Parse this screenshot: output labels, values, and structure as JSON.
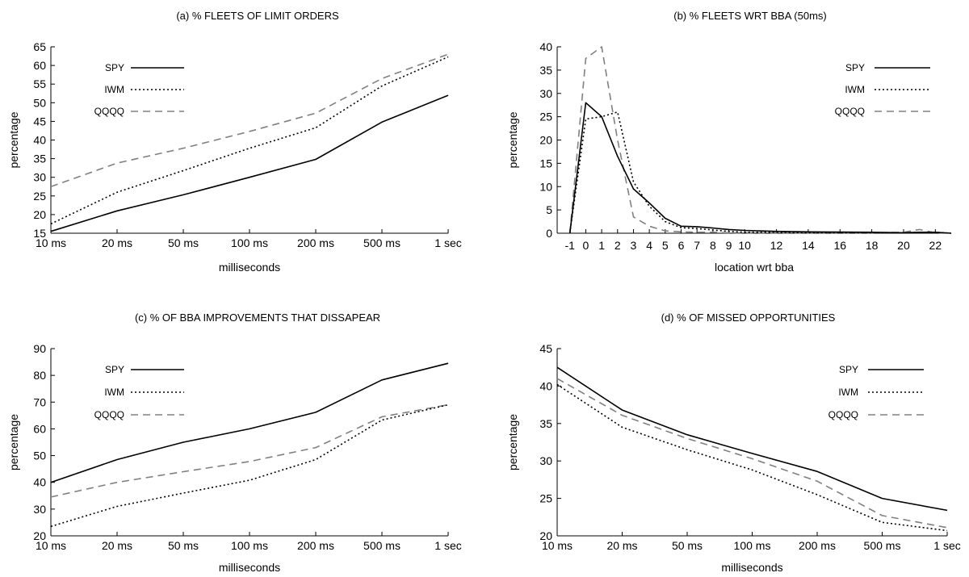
{
  "chart_data": [
    {
      "id": "a",
      "type": "line",
      "title": "(a) % FLEETS OF LIMIT ORDERS",
      "xlabel": "milliseconds",
      "ylabel": "percentage",
      "categories": [
        "10 ms",
        "20 ms",
        "50 ms",
        "100 ms",
        "200 ms",
        "500 ms",
        "1 sec"
      ],
      "ylim": [
        15,
        65
      ],
      "yticks": [
        15,
        20,
        25,
        30,
        35,
        40,
        45,
        50,
        55,
        60,
        65
      ],
      "grid": false,
      "legend": "top-left",
      "series": [
        {
          "name": "SPY",
          "style": "solid",
          "values": [
            15.5,
            21,
            25.3,
            30,
            34.8,
            44.8,
            52
          ]
        },
        {
          "name": "IWM",
          "style": "dotted",
          "values": [
            17.5,
            26,
            31.8,
            37.8,
            43.3,
            54.5,
            62.3
          ]
        },
        {
          "name": "QQQQ",
          "style": "dashed",
          "values": [
            27.5,
            33.8,
            37.8,
            42.3,
            47.2,
            56.5,
            63
          ]
        }
      ]
    },
    {
      "id": "b",
      "type": "line",
      "title": "(b) % FLEETS WRT BBA (50ms)",
      "xlabel": "location wrt bba",
      "ylabel": "percentage",
      "xticks": [
        -1,
        0,
        1,
        2,
        3,
        4,
        5,
        6,
        7,
        8,
        9,
        10,
        12,
        14,
        16,
        18,
        20,
        22
      ],
      "xlim": [
        -1.8,
        23
      ],
      "ylim": [
        0,
        40
      ],
      "yticks": [
        0,
        5,
        10,
        15,
        20,
        25,
        30,
        35,
        40
      ],
      "grid": false,
      "legend": "top-right",
      "series": [
        {
          "name": "SPY",
          "style": "solid",
          "x": [
            -1,
            0,
            1,
            2,
            3,
            4,
            5,
            6,
            7,
            8,
            9,
            10,
            12,
            14,
            16,
            18,
            20,
            21,
            22,
            23
          ],
          "values": [
            0,
            28,
            25,
            16.5,
            9.5,
            6.5,
            3.2,
            1.5,
            1.4,
            1.1,
            0.8,
            0.6,
            0.4,
            0.3,
            0.25,
            0.2,
            0.1,
            0.2,
            0.2,
            0
          ]
        },
        {
          "name": "IWM",
          "style": "dotted",
          "x": [
            -1,
            0,
            1,
            2,
            3,
            4,
            5,
            6,
            7,
            8,
            9,
            10,
            12,
            14,
            16,
            18,
            20,
            21,
            22,
            23
          ],
          "values": [
            0,
            24.5,
            25,
            26,
            11,
            5.8,
            2.5,
            1.2,
            1.0,
            0.7,
            0.4,
            0.2,
            0.2,
            0.1,
            0.1,
            0.1,
            0.1,
            0.2,
            0.2,
            0
          ]
        },
        {
          "name": "QQQQ",
          "style": "dashed",
          "x": [
            -1,
            0,
            1,
            2,
            3,
            4,
            5,
            6,
            7,
            8,
            9,
            10,
            12,
            14,
            16,
            18,
            20,
            21,
            22,
            23
          ],
          "values": [
            0,
            37.5,
            40,
            20,
            3.5,
            1.5,
            0.5,
            0.3,
            0.2,
            0.2,
            0.1,
            0.1,
            0.1,
            0.1,
            0.1,
            0.1,
            0.2,
            0.8,
            0.1,
            0
          ]
        }
      ]
    },
    {
      "id": "c",
      "type": "line",
      "title": "(c) % OF BBA IMPROVEMENTS THAT DISSAPEAR",
      "xlabel": "milliseconds",
      "ylabel": "percentage",
      "categories": [
        "10 ms",
        "20 ms",
        "50 ms",
        "100 ms",
        "200 ms",
        "500 ms",
        "1 sec"
      ],
      "ylim": [
        20,
        90
      ],
      "yticks": [
        20,
        30,
        40,
        50,
        60,
        70,
        80,
        90
      ],
      "grid": false,
      "legend": "top-left",
      "series": [
        {
          "name": "SPY",
          "style": "solid",
          "values": [
            40,
            48.5,
            55,
            60,
            66.2,
            78.3,
            84.5
          ]
        },
        {
          "name": "IWM",
          "style": "dotted",
          "values": [
            23.5,
            31,
            36,
            40.8,
            48.5,
            63.3,
            69
          ]
        },
        {
          "name": "QQQQ",
          "style": "dashed",
          "values": [
            34.5,
            40,
            44,
            47.8,
            53,
            64.5,
            69
          ]
        }
      ]
    },
    {
      "id": "d",
      "type": "line",
      "title": "(d) % OF MISSED OPPORTUNITIES",
      "xlabel": "milliseconds",
      "ylabel": "percentage",
      "categories": [
        "10 ms",
        "20 ms",
        "50 ms",
        "100 ms",
        "200 ms",
        "500 ms",
        "1 sec"
      ],
      "ylim": [
        20,
        45
      ],
      "yticks": [
        20,
        25,
        30,
        35,
        40,
        45
      ],
      "grid": false,
      "legend": "top-right",
      "series": [
        {
          "name": "SPY",
          "style": "solid",
          "values": [
            42.5,
            36.8,
            33.5,
            31,
            28.6,
            25,
            23.4
          ]
        },
        {
          "name": "IWM",
          "style": "dotted",
          "values": [
            40.2,
            34.5,
            31.5,
            28.8,
            25.5,
            21.8,
            20.7
          ]
        },
        {
          "name": "QQQQ",
          "style": "dashed",
          "values": [
            41,
            36.1,
            33,
            30.3,
            27.3,
            22.7,
            21.1
          ]
        }
      ]
    }
  ]
}
